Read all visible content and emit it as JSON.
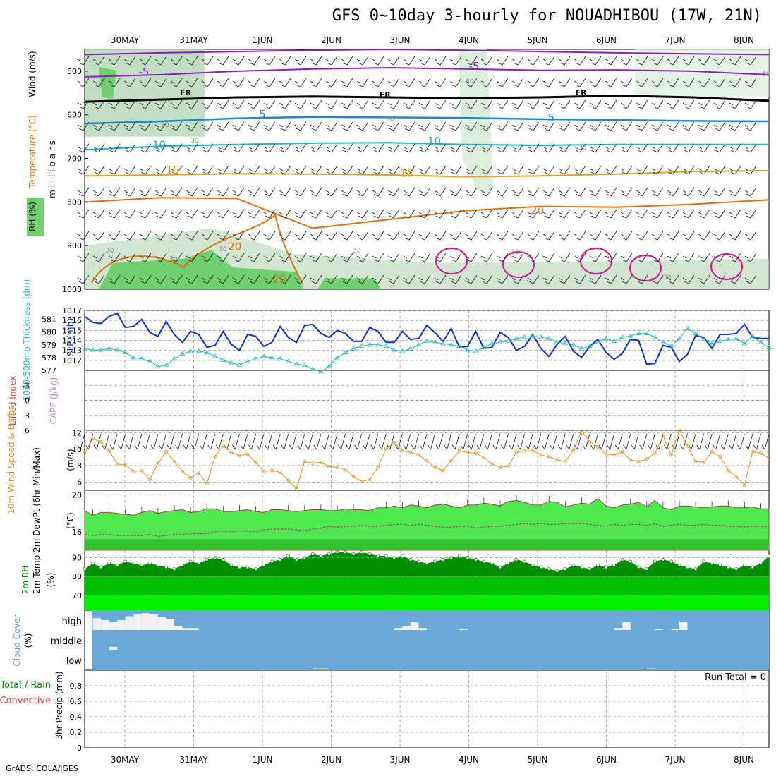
{
  "title": "GFS 0~10day 3-hourly for NOUADHIBOU (17W, 21N)",
  "footer": "GrADS: COLA/IGES",
  "colors": {
    "rh_light": "#dcefdc",
    "rh_mid": "#b4d7b4",
    "rh_dark": "#70d070",
    "temp_purple": "#8c1cc6",
    "temp_black": "#000000",
    "temp_blue": "#1e88d8",
    "temp_cyan": "#10b8c8",
    "temp_gold": "#e0a020",
    "temp_orange": "#e07010",
    "temp_magenta": "#e0108c",
    "slp": "#1030d0",
    "thickness": "#20b8b8",
    "wind10m": "#e09020",
    "temp2m_fill": "#50e850",
    "dewpt_fill": "#30c030",
    "rh2m_dark": "#009000",
    "rh2m_mid": "#00c000",
    "rh2m_light": "#00f000",
    "cloud_bg": "#6aa8d8",
    "cloud_white": "#f4f0f8",
    "li_zero": "#e04040"
  },
  "chart_data": [
    {
      "type": "heatmap",
      "panel": "upper-air",
      "x": [
        "30MAY",
        "31MAY",
        "1JUN",
        "2JUN",
        "3JUN",
        "4JUN",
        "5JUN",
        "6JUN",
        "7JUN",
        "8JUN"
      ],
      "ylabel": "m i l l i b a r s",
      "ylabels_left": [
        "Wind (m/s)",
        "Temperature (°C)",
        "RH (%)"
      ],
      "yticks": [
        500,
        600,
        700,
        800,
        900,
        1000
      ],
      "ylim": [
        450,
        1000
      ],
      "isotherm_labels": [
        {
          "label": "-5",
          "x": 0.2,
          "y": 510
        },
        {
          "label": "-5",
          "x": 5.0,
          "y": 497
        },
        {
          "label": "FR",
          "x": 0.8,
          "y": 555
        },
        {
          "label": "FR",
          "x": 3.7,
          "y": 560
        },
        {
          "label": "FR",
          "x": 6.55,
          "y": 555
        },
        {
          "label": "5",
          "x": 1.95,
          "y": 607
        },
        {
          "label": "5",
          "x": 6.15,
          "y": 615
        },
        {
          "label": "10",
          "x": 0.4,
          "y": 677
        },
        {
          "label": "10",
          "x": 4.4,
          "y": 668
        },
        {
          "label": "15",
          "x": 0.6,
          "y": 735
        },
        {
          "label": "15",
          "x": 4.0,
          "y": 742
        },
        {
          "label": "20",
          "x": 1.5,
          "y": 910
        },
        {
          "label": "20",
          "x": 5.9,
          "y": 828
        },
        {
          "label": "20",
          "x": 2.15,
          "y": 985
        }
      ],
      "rh_labels": [
        "30",
        "30",
        "30",
        "30",
        "30",
        "30",
        "30",
        "30",
        "30",
        "30",
        "30",
        "30"
      ]
    },
    {
      "type": "line",
      "panel": "slp-thickness",
      "ylabel_left": "1000-500mb Thickness (dm)",
      "ylabel_right": "SLP (mb)",
      "yticks_left": [
        577,
        578,
        579,
        580,
        581
      ],
      "yticks_right": [
        1012,
        1013,
        1014,
        1015,
        1016,
        1017
      ],
      "ylim_right": [
        1011,
        1017
      ],
      "ylim_left": [
        577,
        581.7
      ],
      "series": [
        {
          "name": "SLP (mb)",
          "x_step_hours": 3,
          "values": [
            1016.4,
            1015.8,
            1015.7,
            1016.4,
            1016.7,
            1015.3,
            1015.4,
            1016.1,
            1014.8,
            1014.4,
            1015.9,
            1014.6,
            1013.8,
            1014.9,
            1014.6,
            1013.3,
            1013.5,
            1014.9,
            1013.6,
            1013.0,
            1014.6,
            1014.4,
            1013.4,
            1013.8,
            1015.4,
            1014.3,
            1013.8,
            1015.5,
            1015.6,
            1014.7,
            1014.3,
            1015.0,
            1014.7,
            1013.9,
            1013.9,
            1015.3,
            1014.9,
            1013.8,
            1013.8,
            1014.9,
            1014.1,
            1014.2,
            1015.5,
            1014.8,
            1013.9,
            1015.2,
            1013.3,
            1013.4,
            1014.9,
            1013.2,
            1013.3,
            1014.8,
            1014.3,
            1013.0,
            1013.4,
            1014.6,
            1013.2,
            1012.4,
            1013.6,
            1014.4,
            1012.9,
            1012.3,
            1013.4,
            1014.1,
            1012.8,
            1012.1,
            1012.7,
            1014.1,
            1014.0,
            1011.6,
            1011.7,
            1013.5,
            1013.3,
            1011.9,
            1012.6,
            1014.5,
            1014.3,
            1013.2,
            1014.6,
            1014.6,
            1014.7,
            1015.6,
            1014.3,
            1014.2,
            1014.2
          ]
        },
        {
          "name": "1000-500mb Thickness (dm)",
          "x_step_hours": 3,
          "values": [
            578.7,
            578.6,
            578.6,
            578.7,
            578.6,
            578.4,
            578.0,
            577.9,
            577.7,
            577.3,
            577.4,
            577.9,
            578.3,
            578.5,
            578.5,
            578.4,
            578.1,
            577.8,
            577.6,
            577.4,
            577.7,
            577.9,
            578.1,
            578.0,
            577.9,
            577.7,
            577.5,
            577.4,
            577.1,
            576.9,
            577.3,
            578.0,
            578.4,
            578.7,
            578.9,
            579.0,
            579.0,
            578.9,
            578.6,
            578.5,
            578.7,
            579.0,
            579.3,
            579.2,
            579.1,
            579.0,
            578.9,
            578.6,
            578.5,
            578.8,
            579.1,
            579.2,
            579.3,
            579.5,
            579.6,
            579.7,
            579.6,
            579.5,
            579.2,
            579.1,
            579.0,
            578.7,
            578.9,
            579.2,
            579.5,
            579.3,
            579.6,
            579.7,
            579.9,
            579.9,
            579.6,
            579.2,
            578.9,
            579.5,
            580.3,
            579.9,
            579.4,
            579.1,
            579.3,
            579.4,
            579.5,
            579.1,
            579.7,
            579.2,
            578.8
          ]
        }
      ]
    },
    {
      "type": "line",
      "panel": "lifted-index-cape",
      "ylabel_left": "Lifted Index",
      "ylabel_right": "CAPE (J/kg)",
      "yticks": [
        -3,
        0,
        3,
        6
      ],
      "ylim": [
        -6,
        6
      ],
      "series": [
        {
          "name": "Lifted Index",
          "values": []
        }
      ]
    },
    {
      "type": "line",
      "panel": "wind10m",
      "ylabel_left": "10m Wind Speed & Barbs",
      "ylabel_right": "(m/s)",
      "yticks": [
        6,
        8,
        10,
        12
      ],
      "ylim": [
        5,
        12.3
      ],
      "series": [
        {
          "name": "10m Wind Speed",
          "x_step_hours": 3,
          "values": [
            9.5,
            11.3,
            10.9,
            9.8,
            8.2,
            8.1,
            7.3,
            7.4,
            6.3,
            8.3,
            9.7,
            8.5,
            7.3,
            6.5,
            7.1,
            5.8,
            9.1,
            10.4,
            9.6,
            9.2,
            9.4,
            8.4,
            7.3,
            7.4,
            7.2,
            6.2,
            5.2,
            8.5,
            8.3,
            8.4,
            7.9,
            7.8,
            7.5,
            6.7,
            6.1,
            6.3,
            7.8,
            10.1,
            10.8,
            9.8,
            9.6,
            9.3,
            8.6,
            7.8,
            7.4,
            8.6,
            9.8,
            9.6,
            9.5,
            9.0,
            8.2,
            7.8,
            7.9,
            9.6,
            9.8,
            9.8,
            9.3,
            9.1,
            8.7,
            8.5,
            9.9,
            12.2,
            10.9,
            10.3,
            9.4,
            9.3,
            9.7,
            8.7,
            8.5,
            8.8,
            9.5,
            11.6,
            9.3,
            12.3,
            10.4,
            8.5,
            8.4,
            9.7,
            9.1,
            7.4,
            6.7,
            5.6,
            9.7,
            9.5,
            8.9
          ]
        }
      ]
    },
    {
      "type": "area",
      "panel": "temp2m",
      "ylabel_left": "2m Temp 2m DewPt (6hr Min/Max)",
      "ylabel_right": "(°C)",
      "yticks": [
        16,
        20
      ],
      "ylim": [
        14,
        20.5
      ],
      "series": [
        {
          "name": "2m Temp",
          "values": [
            18.3,
            17.8,
            18.1,
            18.1,
            18.0,
            17.9,
            17.8,
            18.1,
            18.3,
            18.0,
            18.2,
            18.3,
            18.4,
            18.1,
            18.2,
            18.5,
            18.5,
            18.2,
            18.2,
            18.3,
            18.4,
            18.2,
            18.1,
            18.4,
            18.4,
            18.3,
            18.2,
            18.3,
            18.4,
            18.4,
            18.3,
            18.3,
            18.5,
            18.4,
            18.4,
            18.3,
            18.6,
            18.6,
            18.8,
            18.6,
            18.9,
            18.8,
            18.6,
            18.9,
            19.0,
            18.8,
            18.6,
            18.9,
            18.9,
            19.1,
            19.0,
            18.8,
            19.3,
            19.4,
            19.2,
            18.9,
            18.9,
            19.3,
            19.2,
            18.7,
            18.9,
            19.1,
            19.0,
            19.6,
            18.8,
            18.6,
            18.9,
            19.0,
            19.2,
            18.7,
            19.4,
            18.6,
            18.4,
            18.8,
            18.8,
            18.7,
            18.6,
            18.7,
            18.8,
            18.8,
            18.6,
            18.6,
            18.7,
            18.5,
            18.5
          ]
        },
        {
          "name": "2m DewPt",
          "values": [
            15.7,
            15.6,
            15.7,
            15.7,
            15.6,
            15.6,
            15.6,
            15.6,
            15.7,
            15.5,
            15.6,
            15.7,
            15.7,
            15.8,
            15.8,
            15.8,
            16.0,
            16.1,
            16.0,
            16.1,
            16.1,
            16.0,
            16.2,
            16.3,
            16.3,
            16.3,
            16.2,
            16.1,
            16.3,
            16.4,
            16.6,
            16.5,
            16.6,
            16.6,
            16.7,
            16.6,
            16.6,
            16.7,
            16.8,
            16.8,
            16.7,
            16.8,
            16.7,
            16.6,
            16.5,
            16.5,
            16.6,
            16.6,
            16.4,
            16.5,
            16.6,
            16.6,
            16.7,
            16.8,
            16.9,
            16.8,
            16.9,
            16.8,
            16.8,
            16.9,
            16.9,
            16.9,
            16.8,
            16.7,
            16.6,
            16.8,
            16.7,
            16.8,
            16.8,
            16.7,
            16.9,
            16.6,
            16.7,
            16.8,
            16.7,
            16.7,
            16.8,
            16.7,
            16.7,
            16.6,
            16.6,
            16.5,
            16.6,
            16.6,
            16.5
          ]
        }
      ]
    },
    {
      "type": "area",
      "panel": "rh2m",
      "ylabel_left": "2m RH",
      "ylabel_right": "(%)",
      "yticks": [
        70,
        80,
        90
      ],
      "ylim": [
        62,
        94
      ],
      "series": [
        {
          "name": "2m RH",
          "values": [
            84,
            87,
            85,
            87,
            86,
            88,
            87,
            86,
            87,
            86,
            85,
            84,
            86,
            88,
            87,
            89,
            90,
            89,
            86,
            85,
            85,
            84,
            86,
            88,
            89,
            91,
            89,
            90,
            92,
            91,
            92,
            93,
            93,
            92,
            93,
            92,
            91,
            91,
            90,
            91,
            89,
            88,
            87,
            88,
            89,
            90,
            91,
            90,
            89,
            88,
            87,
            85,
            87,
            89,
            88,
            86,
            85,
            84,
            83,
            84,
            86,
            85,
            84,
            86,
            85,
            86,
            89,
            88,
            85,
            84,
            88,
            89,
            88,
            86,
            85,
            84,
            88,
            87,
            86,
            85,
            84,
            86,
            85,
            87,
            91
          ]
        }
      ]
    },
    {
      "type": "bar",
      "panel": "cloud-cover",
      "ylabel_left": "Cloud Cover",
      "ylabel_right": "(%)",
      "level_labels": [
        "high",
        "middle",
        "low"
      ],
      "series": [
        {
          "name": "high",
          "values": [
            0,
            60,
            50,
            40,
            50,
            70,
            80,
            85,
            80,
            65,
            55,
            20,
            10,
            10,
            0,
            0,
            0,
            0,
            0,
            0,
            0,
            0,
            0,
            0,
            0,
            0,
            0,
            0,
            0,
            0,
            0,
            0,
            0,
            0,
            0,
            0,
            0,
            0,
            10,
            20,
            40,
            10,
            0,
            0,
            0,
            0,
            5,
            0,
            0,
            0,
            0,
            0,
            0,
            0,
            0,
            0,
            0,
            0,
            0,
            0,
            0,
            0,
            0,
            0,
            0,
            10,
            40,
            0,
            0,
            0,
            5,
            0,
            5,
            40,
            0,
            0,
            0,
            0,
            0,
            0,
            0,
            0,
            0,
            0,
            0
          ]
        },
        {
          "name": "middle",
          "values": [
            0,
            0,
            0,
            15,
            0,
            0,
            0,
            0,
            0,
            0,
            0,
            0,
            0,
            0,
            0,
            0,
            0,
            0,
            0,
            0,
            0,
            0,
            0,
            0,
            0,
            0,
            0,
            0,
            0,
            0,
            0,
            0,
            0,
            0,
            0,
            0,
            0,
            0,
            0,
            0,
            0,
            0,
            0,
            0,
            0,
            0,
            0,
            0,
            0,
            0,
            0,
            0,
            0,
            0,
            0,
            0,
            0,
            0,
            0,
            0,
            0,
            0,
            0,
            0,
            0,
            0,
            0,
            0,
            0,
            0,
            0,
            0,
            0,
            0,
            0,
            0,
            0,
            0,
            0,
            0,
            0,
            0,
            0,
            0,
            0
          ]
        },
        {
          "name": "low",
          "values": [
            0,
            0,
            0,
            0,
            0,
            0,
            0,
            0,
            0,
            0,
            0,
            0,
            0,
            0,
            0,
            0,
            0,
            0,
            0,
            0,
            0,
            0,
            0,
            0,
            0,
            0,
            0,
            0,
            5,
            5,
            0,
            0,
            0,
            0,
            0,
            0,
            0,
            0,
            0,
            0,
            0,
            0,
            0,
            0,
            0,
            0,
            0,
            0,
            0,
            0,
            0,
            0,
            0,
            0,
            0,
            0,
            0,
            0,
            0,
            0,
            0,
            0,
            0,
            0,
            0,
            0,
            0,
            0,
            0,
            5,
            0,
            0,
            0,
            0,
            0,
            0,
            0,
            0,
            0,
            0,
            0,
            0,
            0,
            0,
            0
          ]
        }
      ]
    },
    {
      "type": "bar",
      "panel": "precip",
      "ylabel_left": "Total / Rain Convective",
      "ylabel_right": "3hr Precip (mm)",
      "yticks": [
        0,
        0.2,
        0.4,
        0.6,
        0.8
      ],
      "ylim": [
        0,
        1
      ],
      "run_total": "Run Total = 0",
      "series": [
        {
          "name": "Total",
          "values": []
        }
      ]
    }
  ]
}
